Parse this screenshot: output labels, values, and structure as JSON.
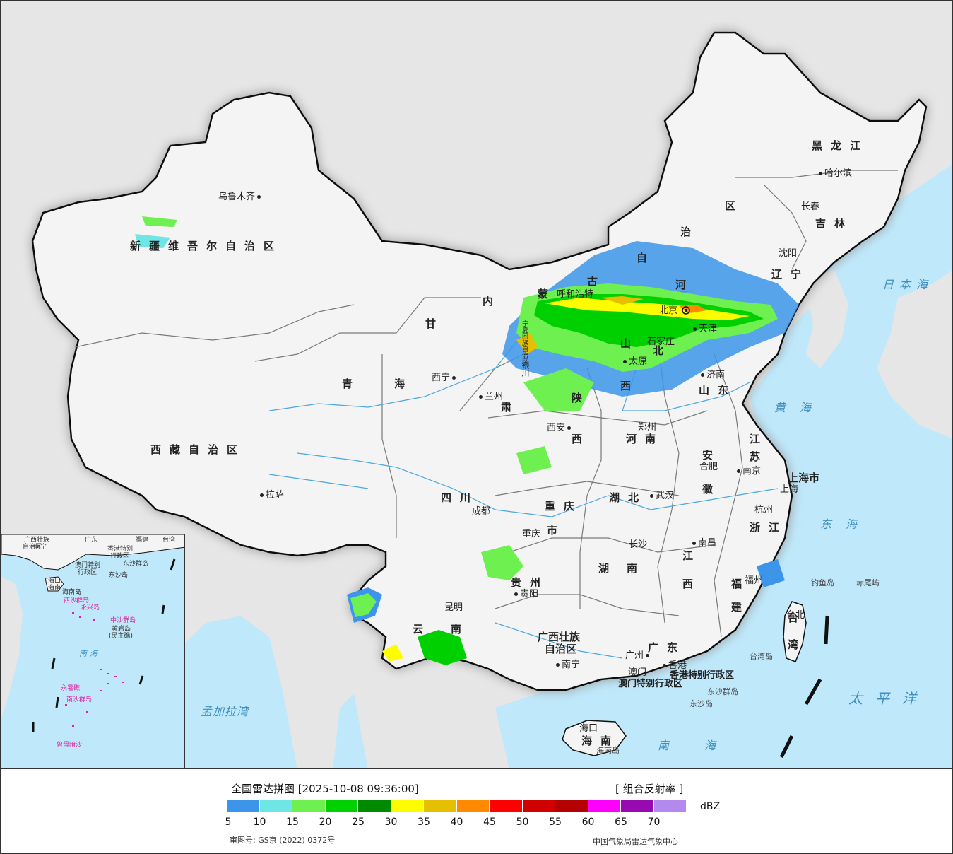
{
  "map": {
    "provinces": [
      "新疆维吾尔自治区",
      "西藏自治区",
      "青海",
      "甘肃",
      "内蒙古自治区",
      "黑龙江",
      "吉林",
      "辽宁",
      "河北",
      "山西",
      "陕西",
      "山东",
      "河南",
      "江苏",
      "安徽",
      "四川",
      "重庆市",
      "湖北",
      "浙江",
      "江西",
      "湖南",
      "贵州",
      "云南",
      "福建",
      "广西壮族自治区",
      "广东",
      "海南",
      "台湾",
      "上海市",
      "北京",
      "天津",
      "宁夏回族自治区",
      "香港特别行政区",
      "澳门特别行政区"
    ],
    "labels": {
      "xinjiang": "新疆维吾尔自治区",
      "xizang": "西藏自治区",
      "qinghai_a": "青",
      "qinghai_b": "海",
      "heilongjiang": "黑龙江",
      "jilin": "吉林",
      "liaoning": "辽宁",
      "nei_1": "内",
      "nei_2": "蒙",
      "nei_3": "古",
      "nei_4": "自",
      "nei_5": "治",
      "nei_6": "区",
      "gansu_1": "甘",
      "gansu_2": "肃",
      "hebei_1": "河",
      "hebei_2": "北",
      "shanxi_1": "山",
      "shanxi_2": "西",
      "shaanxi_1": "陕",
      "shaanxi_2": "西",
      "shandong": "山东",
      "henan": "河南",
      "jiangsu_1": "江",
      "jiangsu_2": "苏",
      "anhui_1": "安",
      "anhui_2": "徽",
      "sichuan": "四川",
      "chongqing_1": "重庆",
      "chongqing_2": "市",
      "hubei": "湖北",
      "zhejiang": "浙江",
      "jiangxi_1": "江",
      "jiangxi_2": "西",
      "hunan_1": "湖",
      "hunan_2": "南",
      "guizhou": "贵州",
      "yunnan_1": "云",
      "yunnan_2": "南",
      "fujian_1": "福",
      "fujian_2": "建",
      "guangxi_1": "广西壮族",
      "guangxi_2": "自治区",
      "guangdong": "广东",
      "hainan": "海南",
      "taiwan_1": "台",
      "taiwan_2": "湾",
      "shanghai": "上海市",
      "hk": "香港特别行政区",
      "macau": "澳门特别行政区",
      "jiang_chongqing": "江",
      "ningxia": "宁夏回族自治区"
    },
    "cities": {
      "urumqi": "乌鲁木齐",
      "lhasa": "拉萨",
      "xining": "西宁",
      "lanzhou": "兰州",
      "harbin": "哈尔滨",
      "changchun": "长春",
      "shenyang": "沈阳",
      "hohhot": "呼和浩特",
      "beijing": "北京",
      "tianjin": "天津",
      "shijiazhuang": "石家庄",
      "taiyuan": "太原",
      "jinan": "济南",
      "xian": "西安",
      "zhengzhou": "郑州",
      "hefei": "合肥",
      "nanjing": "南京",
      "shanghai": "上海",
      "hangzhou": "杭州",
      "wuhan": "武汉",
      "chengdu": "成都",
      "chongqing": "重庆",
      "changsha": "长沙",
      "nanchang": "南昌",
      "fuzhou": "福州",
      "guiyang": "贵阳",
      "kunming": "昆明",
      "nanning": "南宁",
      "guangzhou": "广州",
      "hongkong": "香港",
      "macau": "澳门",
      "haikou": "海口",
      "taipei": "台北",
      "yinchuan": "银川"
    },
    "islands": {
      "diaoyu": "钓鱼岛",
      "chiwei": "赤尾屿",
      "taiwan_dao": "台湾岛",
      "dongsha": "东沙群岛",
      "dongsha_dao": "东沙岛",
      "hainan_dao": "海南岛"
    },
    "seas": {
      "japan_sea": "日本海",
      "yellow_sea": "黄海",
      "east_sea": "东海",
      "pacific": "太平洋",
      "south_sea": "南海",
      "bengal": "孟加拉湾"
    },
    "inset": {
      "labels": [
        "广西壮族",
        "自治区",
        "南宁",
        "广东",
        "福建",
        "台湾",
        "香港特别",
        "行政区",
        "澳门特别",
        "行政区",
        "东沙群岛",
        "东沙岛",
        "海口",
        "海南",
        "海南岛",
        "西沙群岛",
        "永兴岛",
        "中沙群岛",
        "黄岩岛",
        "(民主礁)",
        "南沙群岛",
        "永暑礁",
        "曾母暗沙"
      ],
      "sea": "南海"
    },
    "colors": {
      "ocean": "#bfe9fb",
      "land": "#f4f4f4",
      "outside": "#e6e6e6",
      "border": "#111111"
    }
  },
  "legend": {
    "title": "全国雷达拼图 [2025-10-08 09:36:00]",
    "product": "[ 组合反射率 ]",
    "unit": "dBZ",
    "colors": [
      "#3c95e8",
      "#6ee6e6",
      "#6ef050",
      "#00cf00",
      "#008a00",
      "#fdfd00",
      "#e6bf00",
      "#ff8a00",
      "#ff0000",
      "#d10000",
      "#b40000",
      "#ff00ff",
      "#960aaf",
      "#b389ee"
    ],
    "ticks": [
      "5",
      "10",
      "15",
      "20",
      "25",
      "30",
      "35",
      "40",
      "45",
      "50",
      "55",
      "60",
      "65",
      "70"
    ],
    "approval": "审图号: GS京 (2022) 0372号",
    "source": "中国气象局雷达气象中心"
  }
}
